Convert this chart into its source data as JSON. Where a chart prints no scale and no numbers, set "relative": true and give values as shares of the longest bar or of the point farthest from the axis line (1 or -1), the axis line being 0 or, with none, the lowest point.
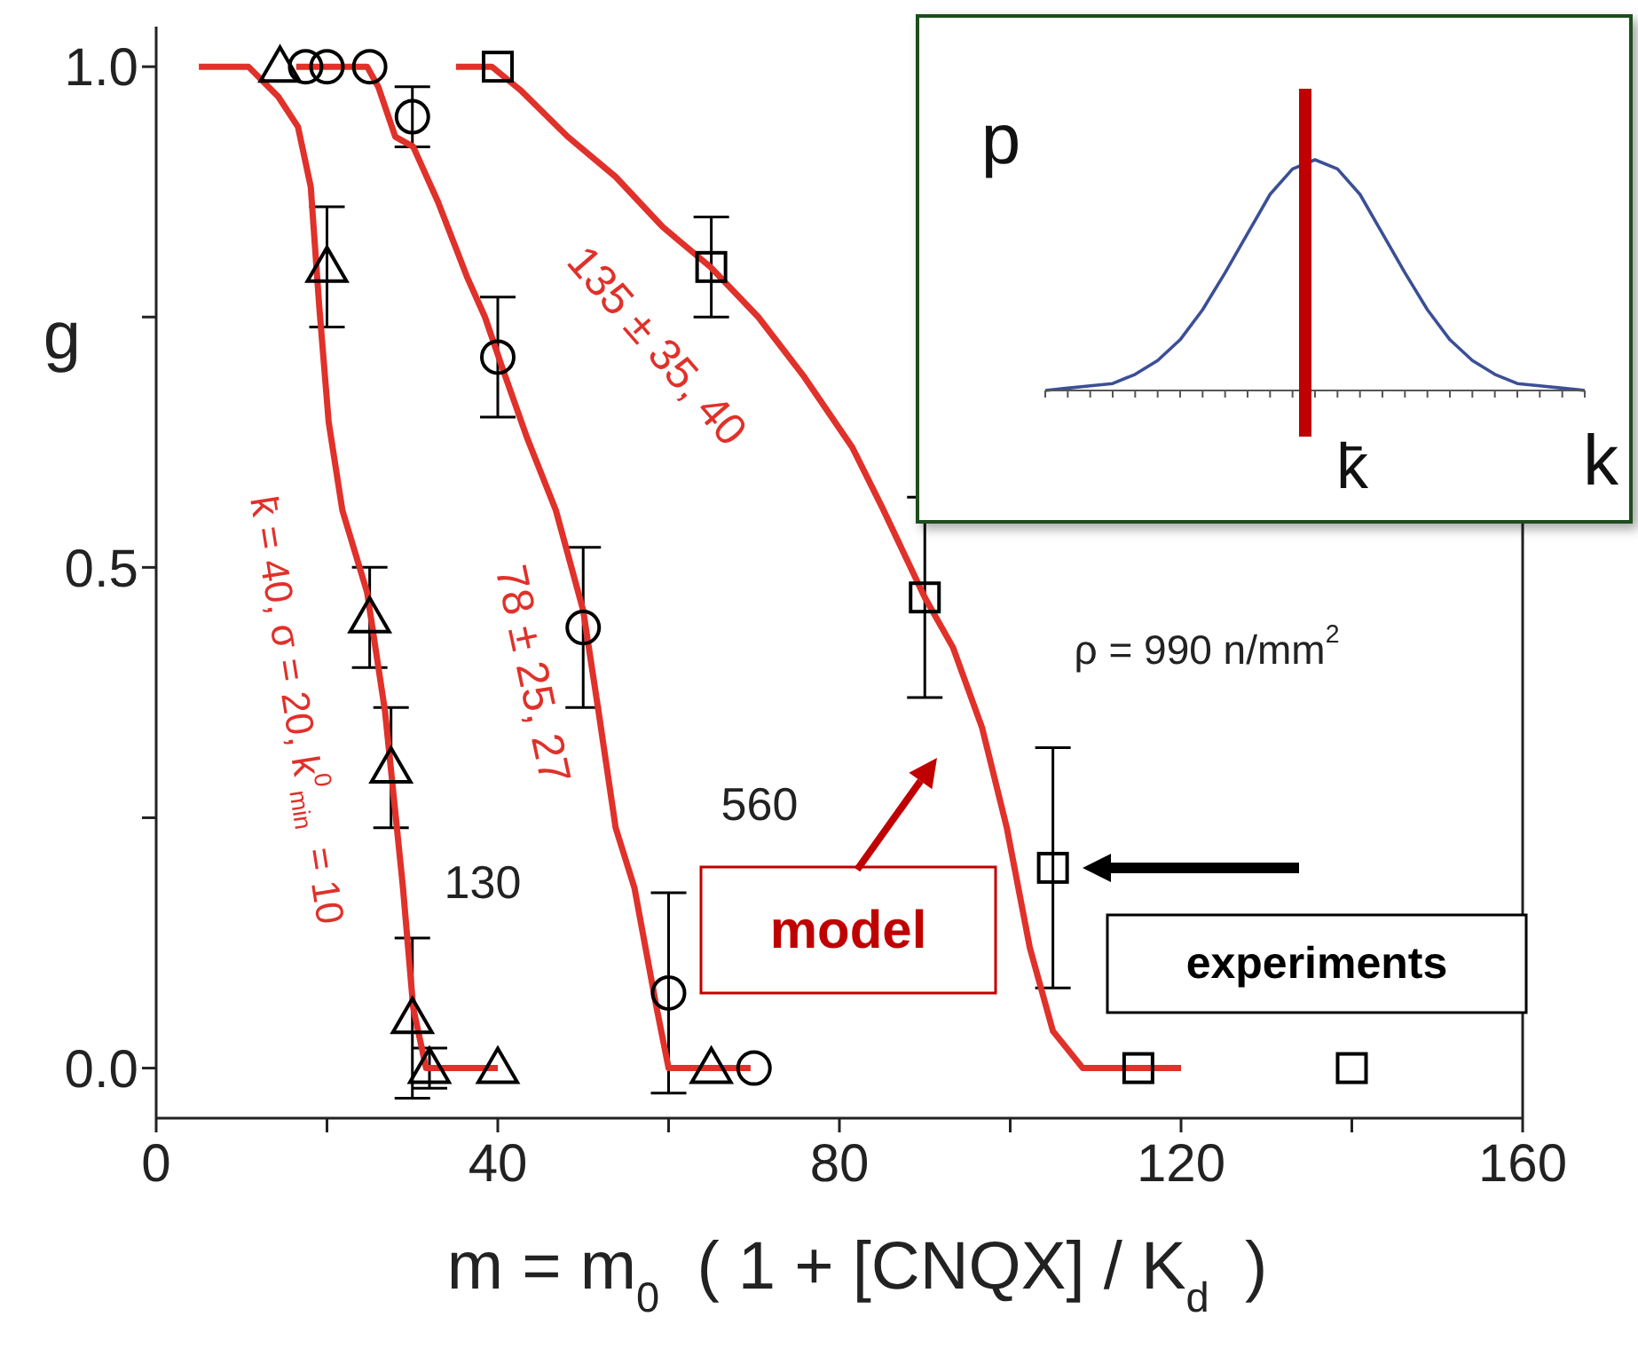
{
  "chart_data": [
    {
      "type": "scatter",
      "xlabel": "m = m$_{0}$  ( 1 + [CNQX] / K$_{d}$ )",
      "ylabel": "g",
      "xlim": [
        0,
        160
      ],
      "xticks": [
        0,
        {
          "value": 20,
          "label": null
        },
        40,
        {
          "value": 60,
          "label": null
        },
        80,
        {
          "value": 100,
          "label": null
        },
        120,
        {
          "value": 140,
          "label": null
        },
        160
      ],
      "ylim": [
        -0.05,
        1.04
      ],
      "yticks": [
        {
          "value": 0,
          "label": "0.0"
        },
        {
          "value": 0.25,
          "label": null
        },
        {
          "value": 0.5,
          "label": "0.5"
        },
        {
          "value": 0.75,
          "label": null
        },
        {
          "value": 1,
          "label": "1.0"
        }
      ],
      "series": [
        {
          "type": "scatter",
          "marker": "triangle",
          "color": "#000000",
          "x": [
            14.5,
            20,
            25,
            27.5,
            30,
            32,
            40,
            65
          ],
          "values": [
            1,
            0.8,
            0.45,
            0.3,
            0.05,
            0,
            0,
            0
          ],
          "errors": [
            null,
            0.06,
            0.05,
            0.06,
            0.08,
            0.02,
            null,
            null
          ]
        },
        {
          "type": "scatter",
          "marker": "circle",
          "color": "#000000",
          "x": [
            17.5,
            20,
            25,
            30,
            40,
            50,
            60,
            70
          ],
          "values": [
            1,
            1,
            1,
            0.95,
            0.71,
            0.44,
            0.075,
            0
          ],
          "errors": [
            null,
            null,
            null,
            0.03,
            0.06,
            0.08,
            0.1,
            null
          ]
        },
        {
          "type": "scatter",
          "marker": "square",
          "color": "#000000",
          "x": [
            40,
            65,
            90,
            105,
            115,
            140
          ],
          "values": [
            1,
            0.8,
            0.47,
            0.2,
            0,
            0
          ],
          "errors": [
            null,
            0.05,
            0.1,
            0.12,
            null,
            null
          ]
        },
        {
          "type": "line",
          "color": "#e0312a",
          "x": [
            5,
            10.8,
            14.3,
            16.6,
            18.1,
            19.1,
            20.2,
            21.8,
            24.7,
            26.8,
            28.9,
            30.1,
            31.6,
            40
          ],
          "values": [
            1,
            1,
            0.97,
            0.94,
            0.88,
            0.76,
            0.645,
            0.557,
            0.475,
            0.356,
            0.18,
            0.06,
            0,
            0
          ]
        },
        {
          "type": "line",
          "color": "#e0312a",
          "x": [
            16.4,
            24.7,
            26,
            28,
            30.1,
            33,
            36.4,
            38.5,
            40.5,
            43.4,
            46.8,
            50,
            51.8,
            53.8,
            56,
            58.6,
            60,
            69.6
          ],
          "values": [
            1,
            1,
            0.98,
            0.93,
            0.92,
            0.865,
            0.79,
            0.75,
            0.7,
            0.63,
            0.557,
            0.457,
            0.356,
            0.24,
            0.18,
            0.06,
            0,
            0
          ]
        },
        {
          "type": "line",
          "color": "#e0312a",
          "x": [
            35.1,
            39.3,
            42.6,
            48.2,
            53.8,
            59.3,
            64.9,
            70.5,
            75.9,
            81.5,
            85,
            90,
            93.3,
            96.7,
            99.6,
            102.3,
            105,
            108.5,
            120
          ],
          "values": [
            1,
            1,
            0.977,
            0.93,
            0.89,
            0.84,
            0.8,
            0.75,
            0.69,
            0.62,
            0.56,
            0.47,
            0.42,
            0.34,
            0.24,
            0.12,
            0.037,
            0,
            0
          ]
        }
      ],
      "annotations": [
        "k̄ = 40, σ = 20, k$^{0}$$_{min}$ = 10",
        "78 ± 25, 27",
        "135 ± 35, 40",
        "130",
        "560",
        "ρ = 990 n/mm$^{2}$",
        "model",
        "experiments"
      ]
    },
    {
      "type": "line",
      "relative": true,
      "xlabel": "k",
      "ylabel": "p",
      "categories": [
        null,
        null,
        null,
        null,
        null,
        null,
        null,
        null,
        null,
        null,
        null,
        null,
        null,
        null,
        null,
        null,
        null,
        null,
        null,
        null,
        null,
        null,
        null,
        null,
        null
      ],
      "series": [
        {
          "color": "#3b4f96",
          "values": [
            0,
            0.01,
            0.02,
            0.03,
            0.07,
            0.13,
            0.22,
            0.35,
            0.51,
            0.68,
            0.85,
            0.96,
            1,
            0.96,
            0.85,
            0.68,
            0.51,
            0.35,
            0.22,
            0.13,
            0.07,
            0.03,
            0.02,
            0.01,
            0
          ]
        }
      ],
      "annotations": [
        "k̄"
      ]
    }
  ]
}
